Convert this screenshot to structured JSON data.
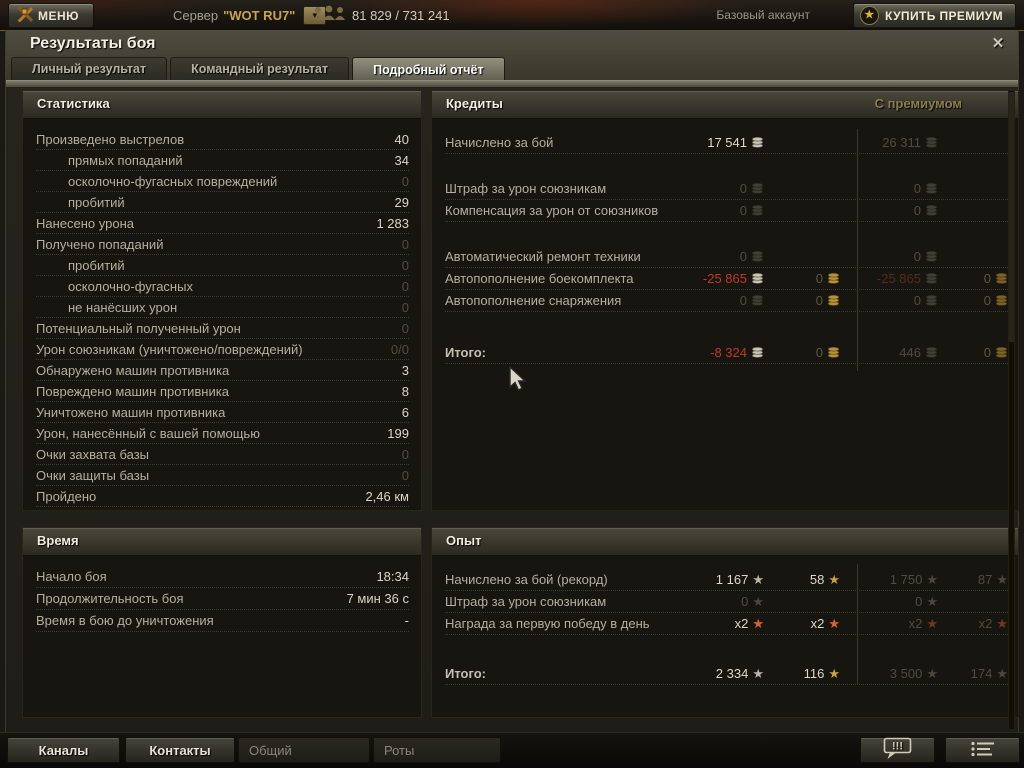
{
  "topbar": {
    "menu_label": "МЕНЮ",
    "server_label": "Сервер",
    "server_value": "\"WOT RU7\"",
    "online_count": "81 829 / 731 241",
    "account_type": "Базовый аккаунт",
    "buy_premium_label": "КУПИТЬ ПРЕМИУМ"
  },
  "window": {
    "title": "Результаты боя",
    "close_glyph": "✕",
    "tabs": [
      {
        "label": "Личный результат",
        "active": false
      },
      {
        "label": "Командный результат",
        "active": false
      },
      {
        "label": "Подробный отчёт",
        "active": true
      }
    ]
  },
  "colors": {
    "negative_red": "#c2372a",
    "gold": "#c9a23e",
    "silver_text": "#dcd9cb",
    "dim_text": "#4f4d42",
    "premium_header_gold": "#8d7c4e"
  },
  "statistics": {
    "title": "Статистика",
    "rows": [
      {
        "label": "Произведено выстрелов",
        "value": "40"
      },
      {
        "label": "прямых попаданий",
        "value": "34",
        "indent": true
      },
      {
        "label": "осколочно-фугасных повреждений",
        "value": "0",
        "indent": true,
        "dim": true
      },
      {
        "label": "пробитий",
        "value": "29",
        "indent": true
      },
      {
        "label": "Нанесено урона",
        "value": "1 283"
      },
      {
        "label": "Получено попаданий",
        "value": "0",
        "dim": true
      },
      {
        "label": "пробитий",
        "value": "0",
        "indent": true,
        "dim": true
      },
      {
        "label": "осколочно-фугасных",
        "value": "0",
        "indent": true,
        "dim": true
      },
      {
        "label": "не нанёсших урон",
        "value": "0",
        "indent": true,
        "dim": true
      },
      {
        "label": "Потенциальный полученный урон",
        "value": "0",
        "dim": true
      },
      {
        "label": "Урон союзникам (уничтожено/повреждений)",
        "value": "0/0",
        "dim": true
      },
      {
        "label": "Обнаружено машин противника",
        "value": "3"
      },
      {
        "label": "Повреждено машин противника",
        "value": "8"
      },
      {
        "label": "Уничтожено машин противника",
        "value": "6"
      },
      {
        "label": "Урон, нанесённый с вашей помощью",
        "value": "199"
      },
      {
        "label": "Очки захвата базы",
        "value": "0",
        "dim": true
      },
      {
        "label": "Очки защиты базы",
        "value": "0",
        "dim": true
      },
      {
        "label": "Пройдено",
        "value": "2,46 км"
      }
    ]
  },
  "credits": {
    "title": "Кредиты",
    "premium_header": "С премиумом",
    "rows": [
      {
        "label": "Начислено за бой",
        "cells": [
          {
            "v": "17 541",
            "ic": "coin-s",
            "cl": "bright"
          },
          null,
          {
            "v": "26 311",
            "ic": "coin-sd",
            "cl": "dim"
          },
          null
        ]
      },
      {
        "spacer": 24
      },
      {
        "label": "Штраф за урон союзникам",
        "cells": [
          {
            "v": "0",
            "ic": "coin-sd",
            "cl": "dim"
          },
          null,
          {
            "v": "0",
            "ic": "coin-sd",
            "cl": "dim"
          },
          null
        ]
      },
      {
        "label": "Компенсация за урон от союзников",
        "cells": [
          {
            "v": "0",
            "ic": "coin-sd",
            "cl": "dim"
          },
          null,
          {
            "v": "0",
            "ic": "coin-sd",
            "cl": "dim"
          },
          null
        ]
      },
      {
        "spacer": 24
      },
      {
        "label": "Автоматический ремонт техники",
        "cells": [
          {
            "v": "0",
            "ic": "coin-sd",
            "cl": "dim"
          },
          null,
          {
            "v": "0",
            "ic": "coin-sd",
            "cl": "dim"
          },
          null
        ]
      },
      {
        "label": "Автопополнение боекомплекта",
        "cells": [
          {
            "v": "-25 865",
            "ic": "coin-s",
            "cl": "red"
          },
          {
            "v": "0",
            "ic": "coin-g",
            "cl": "dimgold"
          },
          {
            "v": "-25 865",
            "ic": "coin-sd",
            "cl": "dimred"
          },
          {
            "v": "0",
            "ic": "coin-gd",
            "cl": "dimgold"
          }
        ]
      },
      {
        "label": "Автопополнение снаряжения",
        "cells": [
          {
            "v": "0",
            "ic": "coin-sd",
            "cl": "dim"
          },
          {
            "v": "0",
            "ic": "coin-g",
            "cl": "dimgold"
          },
          {
            "v": "0",
            "ic": "coin-sd",
            "cl": "dim"
          },
          {
            "v": "0",
            "ic": "coin-gd",
            "cl": "dimgold"
          }
        ]
      },
      {
        "spacer": 30
      },
      {
        "label": "Итого:",
        "bold": true,
        "cells": [
          {
            "v": "-8 324",
            "ic": "coin-s",
            "cl": "red"
          },
          {
            "v": "0",
            "ic": "coin-g",
            "cl": "dimgold"
          },
          {
            "v": "446",
            "ic": "coin-sd",
            "cl": "dim"
          },
          {
            "v": "0",
            "ic": "coin-gd",
            "cl": "dimgold"
          }
        ]
      }
    ]
  },
  "time": {
    "title": "Время",
    "rows": [
      {
        "label": "Начало боя",
        "value": "18:34"
      },
      {
        "label": "Продолжительность боя",
        "value": "7 мин 36 с"
      },
      {
        "label": "Время в бою до уничтожения",
        "value": "-"
      }
    ]
  },
  "experience": {
    "title": "Опыт",
    "rows": [
      {
        "label": "Начислено за бой (рекорд)",
        "cells": [
          {
            "v": "1 167",
            "ic": "star-s",
            "cl": "bright"
          },
          {
            "v": "58",
            "ic": "star-g",
            "cl": "bright"
          },
          {
            "v": "1 750",
            "ic": "star-sd",
            "cl": "dim"
          },
          {
            "v": "87",
            "ic": "star-sd",
            "cl": "dim"
          }
        ]
      },
      {
        "label": "Штраф за урон союзникам",
        "cells": [
          {
            "v": "0",
            "ic": "star-sd",
            "cl": "dim"
          },
          null,
          {
            "v": "0",
            "ic": "star-sd",
            "cl": "dim"
          },
          null
        ]
      },
      {
        "label": "Награда за первую победу в день",
        "cells": [
          {
            "v": "x2",
            "ic": "star-o",
            "cl": "bright"
          },
          {
            "v": "x2",
            "ic": "star-o",
            "cl": "bright"
          },
          {
            "v": "x2",
            "ic": "star-od",
            "cl": "dim"
          },
          {
            "v": "x2",
            "ic": "star-od",
            "cl": "dim"
          }
        ]
      },
      {
        "spacer": 28
      },
      {
        "label": "Итого:",
        "bold": true,
        "cells": [
          {
            "v": "2 334",
            "ic": "star-s",
            "cl": "bright"
          },
          {
            "v": "116",
            "ic": "star-g",
            "cl": "bright"
          },
          {
            "v": "3 500",
            "ic": "star-sd",
            "cl": "dim"
          },
          {
            "v": "174",
            "ic": "star-sd",
            "cl": "dim"
          }
        ]
      }
    ]
  },
  "bottombar": {
    "channels_label": "Каналы",
    "contacts_label": "Контакты",
    "tab_general": "Общий",
    "tab_companies": "Роты"
  }
}
